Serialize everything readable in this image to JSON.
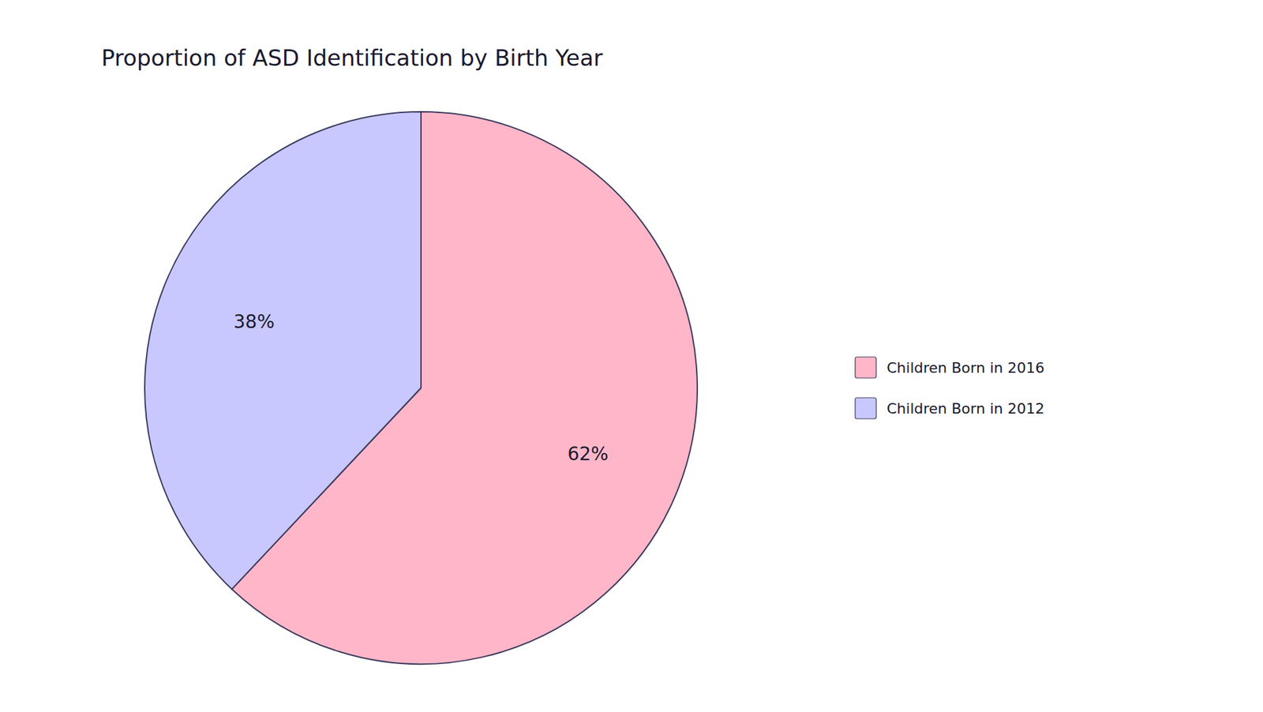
{
  "chart_data": {
    "type": "pie",
    "title": "Proportion of ASD Identification by Birth Year",
    "categories": [
      "Children Born in 2016",
      "Children Born in 2012"
    ],
    "values": [
      62,
      38
    ],
    "value_labels": [
      "62%",
      "38%"
    ],
    "colors": [
      "#FFB6C8",
      "#C8C8FF"
    ],
    "data_labels": true,
    "legend": "right"
  }
}
